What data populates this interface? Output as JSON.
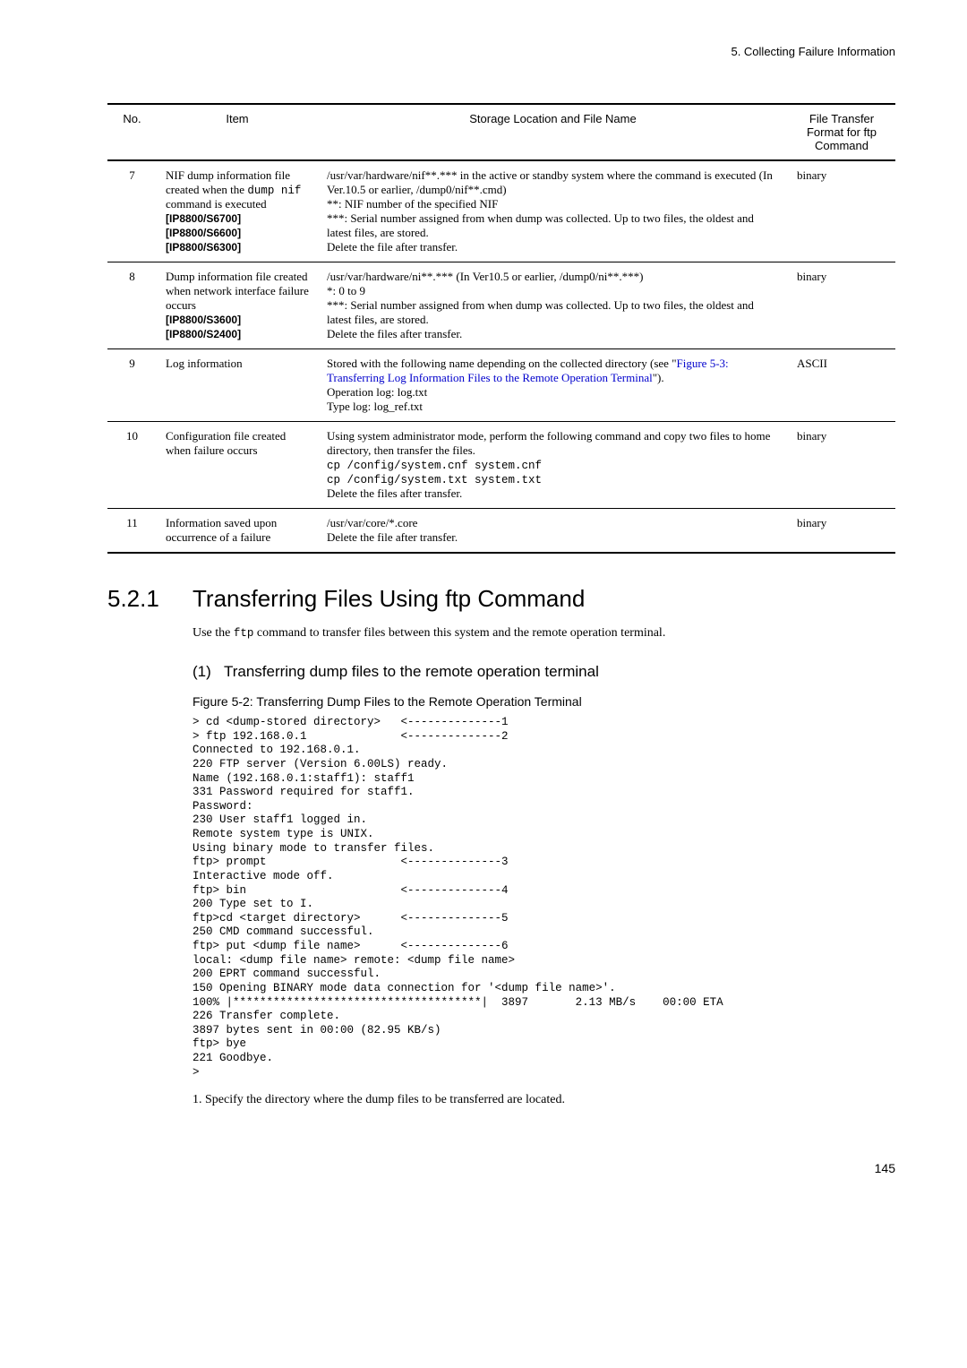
{
  "header": {
    "chapter": "5.   Collecting Failure Information"
  },
  "table": {
    "columns": [
      "No.",
      "Item",
      "Storage Location and File Name",
      "File Transfer Format for ftp Command"
    ],
    "rows": [
      {
        "no": "7",
        "item_lines": [
          "NIF dump information file created when the ",
          " command is executed"
        ],
        "item_mono": "dump nif",
        "item_bold": [
          "[IP8800/S6700]",
          "[IP8800/S6600]",
          "[IP8800/S6300]"
        ],
        "loc": "/usr/var/hardware/nif**.*** in the active or standby system where the command is executed (In Ver.10.5 or earlier, /dump0/nif**.cmd)\n**: NIF number of the specified NIF\n***: Serial number assigned from when dump was collected. Up to two files, the oldest and latest files, are stored.\nDelete the file after transfer.",
        "fmt": "binary"
      },
      {
        "no": "8",
        "item_lines": [
          "Dump information file created when network interface failure occurs"
        ],
        "item_bold": [
          "[IP8800/S3600]",
          "[IP8800/S2400]"
        ],
        "loc": "/usr/var/hardware/ni**.*** (In Ver10.5 or earlier, /dump0/ni**.***)\n*: 0 to 9\n***: Serial number assigned from when dump was collected. Up to two files, the oldest and latest files, are stored.\nDelete the files after transfer.",
        "fmt": "binary"
      },
      {
        "no": "9",
        "item_lines": [
          "Log information"
        ],
        "loc_pre": "Stored with the following name depending on the collected directory (see \"",
        "loc_link": "Figure 5-3: Transferring Log Information Files to the Remote Operation Terminal",
        "loc_post": "\").\nOperation log: log.txt\nType log: log_ref.txt",
        "fmt": "ASCII"
      },
      {
        "no": "10",
        "item_lines": [
          "Configuration file created when failure occurs"
        ],
        "loc_pre2": "Using system administrator mode, perform the following command and copy two files to home directory, then transfer the files.",
        "loc_mono": [
          "  cp /config/system.cnf system.cnf",
          "  cp /config/system.txt system.txt"
        ],
        "loc_post2": "Delete the files after transfer.",
        "fmt": "binary"
      },
      {
        "no": "11",
        "item_lines": [
          "Information saved upon occurrence of a failure"
        ],
        "loc": "/usr/var/core/*.core\nDelete the file after transfer.",
        "fmt": "binary"
      }
    ]
  },
  "section": {
    "num": "5.2.1",
    "title": "Transferring Files Using ftp Command",
    "intro_pre": "Use the ",
    "intro_mono": "ftp",
    "intro_post": " command to transfer files between this system and the remote operation terminal."
  },
  "sub": {
    "num": "(1)",
    "title": "Transferring dump files to the remote operation terminal"
  },
  "figure": {
    "caption": "Figure 5-2: Transferring Dump Files to the Remote Operation Terminal",
    "terminal": "> cd <dump-stored directory>   <--------------1\n> ftp 192.168.0.1              <--------------2\nConnected to 192.168.0.1.\n220 FTP server (Version 6.00LS) ready.\nName (192.168.0.1:staff1): staff1\n331 Password required for staff1.\nPassword:\n230 User staff1 logged in.\nRemote system type is UNIX.\nUsing binary mode to transfer files.\nftp> prompt                    <--------------3\nInteractive mode off.\nftp> bin                       <--------------4\n200 Type set to I.\nftp>cd <target directory>      <--------------5\n250 CMD command successful.\nftp> put <dump file name>      <--------------6\nlocal: <dump file name> remote: <dump file name>\n200 EPRT command successful.\n150 Opening BINARY mode data connection for '<dump file name>'.\n100% |*************************************|  3897       2.13 MB/s    00:00 ETA\n226 Transfer complete.\n3897 bytes sent in 00:00 (82.95 KB/s)\nftp> bye\n221 Goodbye.\n>"
  },
  "footnote": "1. Specify the directory where the dump files to be transferred are located.",
  "page": "145"
}
